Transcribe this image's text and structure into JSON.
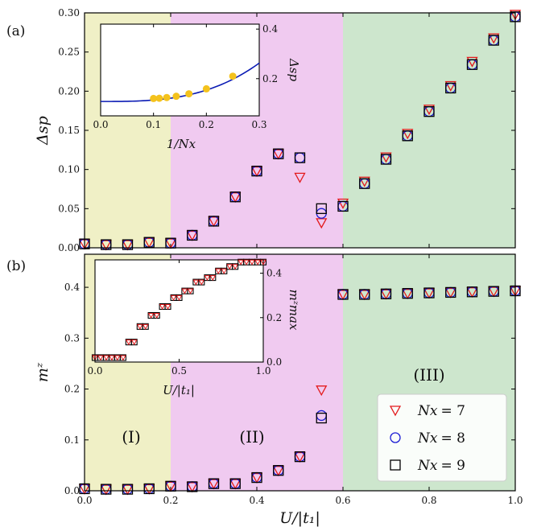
{
  "figure": {
    "panel_a_tag": "(a)",
    "panel_b_tag": "(b)"
  },
  "chart_data": [
    {
      "id": "a",
      "type": "scatter",
      "xlabel": "U/|t₁|",
      "ylabel": "Δsp",
      "xlim": [
        0,
        1
      ],
      "ylim": [
        0,
        0.3
      ],
      "xticks": [
        "0.0",
        "0.2",
        "0.4",
        "0.6",
        "0.8",
        "1.0"
      ],
      "yticks": [
        "0.00",
        "0.05",
        "0.10",
        "0.15",
        "0.20",
        "0.25",
        "0.30"
      ],
      "regions": [
        {
          "range": [
            0,
            0.2
          ],
          "color": "#f0f0c6"
        },
        {
          "range": [
            0.2,
            0.6
          ],
          "color": "#f0caf0"
        },
        {
          "range": [
            0.6,
            1.0
          ],
          "color": "#cde6cd"
        }
      ],
      "x": [
        0.0,
        0.05,
        0.1,
        0.15,
        0.2,
        0.25,
        0.3,
        0.35,
        0.4,
        0.45,
        0.5,
        0.55,
        0.6,
        0.65,
        0.7,
        0.75,
        0.8,
        0.85,
        0.9,
        0.95,
        1.0
      ],
      "series": [
        {
          "name": "Nx = 7",
          "marker": "triangle",
          "color": "#e31a1c",
          "values": [
            0.005,
            0.004,
            0.004,
            0.007,
            0.006,
            0.016,
            0.034,
            0.065,
            0.098,
            0.12,
            0.09,
            0.032,
            0.057,
            0.085,
            0.116,
            0.146,
            0.177,
            0.207,
            0.238,
            0.268,
            0.298
          ]
        },
        {
          "name": "Nx = 8",
          "marker": "circle",
          "color": "#1a1ad4",
          "values": [
            0.005,
            0.004,
            0.004,
            0.007,
            0.006,
            0.016,
            0.034,
            0.065,
            0.098,
            0.12,
            0.115,
            0.044,
            0.053,
            0.082,
            0.113,
            0.143,
            0.174,
            0.204,
            0.234,
            0.265,
            0.295
          ]
        },
        {
          "name": "Nx = 9",
          "marker": "square",
          "color": "#000000",
          "values": [
            0.005,
            0.004,
            0.004,
            0.007,
            0.006,
            0.016,
            0.034,
            0.065,
            0.098,
            0.12,
            0.115,
            0.05,
            0.053,
            0.082,
            0.113,
            0.143,
            0.174,
            0.204,
            0.234,
            0.265,
            0.295
          ]
        }
      ],
      "inset": {
        "type": "scatter",
        "xlabel": "1/Nx",
        "ylabel": "Δsp",
        "xlim": [
          0,
          0.3
        ],
        "ylim": [
          0.05,
          0.42
        ],
        "xticks": [
          "0.0",
          "0.1",
          "0.2",
          "0.3"
        ],
        "yticks": [
          "0.2",
          "0.4"
        ],
        "x": [
          0.1,
          0.111,
          0.125,
          0.143,
          0.167,
          0.2,
          0.25
        ],
        "values": [
          0.12,
          0.121,
          0.124,
          0.129,
          0.139,
          0.159,
          0.21
        ],
        "point_color": "#f4c21c",
        "fit": {
          "color": "#0a1ab4",
          "intercept": 0.108,
          "coefficient": 5.74,
          "exponent": 3
        }
      }
    },
    {
      "id": "b",
      "type": "scatter",
      "xlabel": "U/|t₁|",
      "ylabel": "mᶻ",
      "xlim": [
        0,
        1
      ],
      "ylim": [
        0,
        0.465
      ],
      "xticks": [
        "0.0",
        "0.2",
        "0.4",
        "0.6",
        "0.8",
        "1.0"
      ],
      "yticks": [
        "0.0",
        "0.1",
        "0.2",
        "0.3",
        "0.4"
      ],
      "region_labels": [
        "(I)",
        "(II)",
        "(III)"
      ],
      "regions": [
        {
          "range": [
            0,
            0.2
          ],
          "color": "#f0f0c6"
        },
        {
          "range": [
            0.2,
            0.6
          ],
          "color": "#f0caf0"
        },
        {
          "range": [
            0.6,
            1.0
          ],
          "color": "#cde6cd"
        }
      ],
      "x": [
        0.0,
        0.05,
        0.1,
        0.15,
        0.2,
        0.25,
        0.3,
        0.35,
        0.4,
        0.45,
        0.5,
        0.55,
        0.6,
        0.65,
        0.7,
        0.75,
        0.8,
        0.85,
        0.9,
        0.95,
        1.0
      ],
      "series": [
        {
          "name": "Nx = 7",
          "marker": "triangle",
          "color": "#e31a1c",
          "values": [
            0.004,
            0.003,
            0.003,
            0.004,
            0.009,
            0.008,
            0.014,
            0.014,
            0.026,
            0.04,
            0.067,
            0.198,
            0.386,
            0.386,
            0.387,
            0.388,
            0.389,
            0.39,
            0.391,
            0.392,
            0.393
          ]
        },
        {
          "name": "Nx = 8",
          "marker": "circle",
          "color": "#1a1ad4",
          "values": [
            0.004,
            0.003,
            0.003,
            0.004,
            0.009,
            0.008,
            0.014,
            0.014,
            0.026,
            0.04,
            0.067,
            0.148,
            0.386,
            0.386,
            0.387,
            0.388,
            0.389,
            0.39,
            0.391,
            0.392,
            0.393
          ]
        },
        {
          "name": "Nx = 9",
          "marker": "square",
          "color": "#000000",
          "values": [
            0.004,
            0.003,
            0.003,
            0.004,
            0.009,
            0.008,
            0.014,
            0.014,
            0.026,
            0.04,
            0.067,
            0.143,
            0.386,
            0.386,
            0.387,
            0.388,
            0.389,
            0.39,
            0.391,
            0.392,
            0.393
          ]
        }
      ],
      "legend": {
        "placement": "lower-right",
        "entries": [
          {
            "symbol": "Nx",
            "value": "= 7",
            "marker": "triangle",
            "color": "#e31a1c"
          },
          {
            "symbol": "Nx",
            "value": "= 8",
            "marker": "circle",
            "color": "#1a1ad4"
          },
          {
            "symbol": "Nx",
            "value": "= 9",
            "marker": "square",
            "color": "#000000"
          }
        ]
      },
      "inset": {
        "type": "scatter",
        "xlabel": "U/|t₁|",
        "ylabel": "mᶻmax",
        "xlim": [
          0,
          1
        ],
        "ylim": [
          0,
          0.46
        ],
        "xticks": [
          "0.0",
          "0.5",
          "1.0"
        ],
        "yticks": [
          "0.0",
          "0.2",
          "0.4"
        ],
        "x": [
          0.0,
          0.033,
          0.067,
          0.1,
          0.133,
          0.167,
          0.2,
          0.233,
          0.267,
          0.3,
          0.333,
          0.367,
          0.4,
          0.433,
          0.467,
          0.5,
          0.533,
          0.567,
          0.6,
          0.633,
          0.667,
          0.7,
          0.733,
          0.767,
          0.8,
          0.833,
          0.867,
          0.9,
          0.933,
          0.967,
          1.0
        ],
        "values": [
          0.02,
          0.02,
          0.02,
          0.02,
          0.02,
          0.02,
          0.09,
          0.09,
          0.16,
          0.16,
          0.21,
          0.21,
          0.25,
          0.25,
          0.29,
          0.29,
          0.32,
          0.32,
          0.36,
          0.36,
          0.38,
          0.38,
          0.41,
          0.41,
          0.43,
          0.43,
          0.45,
          0.45,
          0.45,
          0.45,
          0.45
        ]
      }
    }
  ]
}
